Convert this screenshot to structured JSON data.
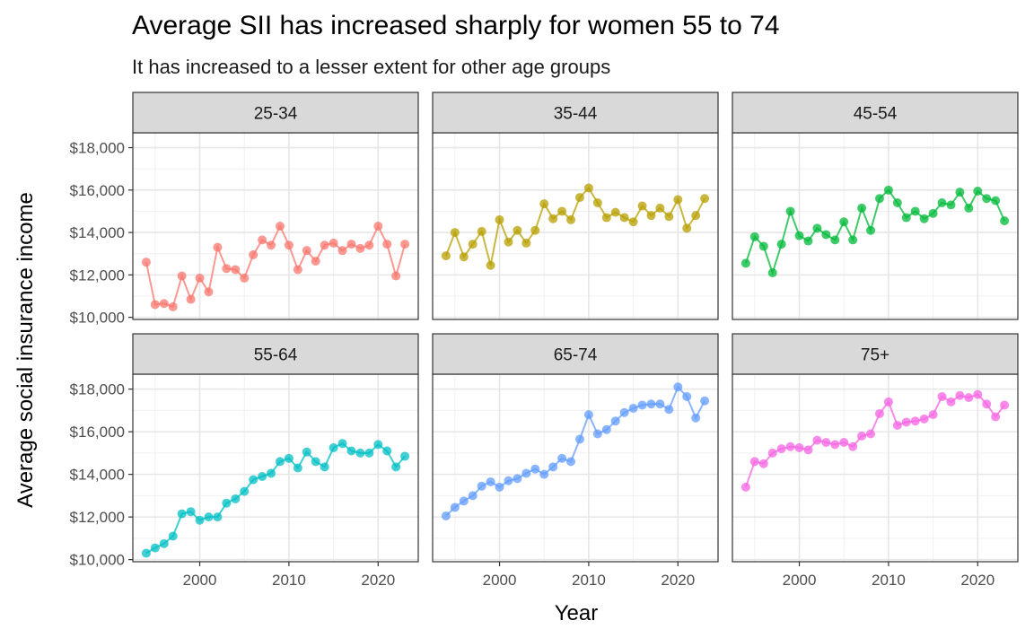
{
  "chart_data": {
    "type": "line",
    "title": "Average SII has increased sharply for women 55 to 74",
    "subtitle": "It has increased to a lesser extent for other age groups",
    "xlabel": "Year",
    "ylabel": "Average social insurance income",
    "xlim": [
      1992.5,
      2024.5
    ],
    "ylim": [
      9900,
      18700
    ],
    "x_ticks": [
      2000,
      2010,
      2020
    ],
    "y_ticks": [
      10000,
      12000,
      14000,
      16000,
      18000
    ],
    "y_tick_labels": [
      "$10,000",
      "$12,000",
      "$14,000",
      "$16,000",
      "$18,000"
    ],
    "x_tick_labels": [
      "2000",
      "2010",
      "2020"
    ],
    "grid": true,
    "legend": "none",
    "layout": "facet grid, 2 rows x 3 columns, shared axes",
    "x": [
      1994,
      1995,
      1996,
      1997,
      1998,
      1999,
      2000,
      2001,
      2002,
      2003,
      2004,
      2005,
      2006,
      2007,
      2008,
      2009,
      2010,
      2011,
      2012,
      2013,
      2014,
      2015,
      2016,
      2017,
      2018,
      2019,
      2020,
      2021,
      2022,
      2023
    ],
    "series": [
      {
        "name": "25-34",
        "color": "#F8766D",
        "values": [
          12600,
          10600,
          10650,
          10500,
          11950,
          10850,
          11850,
          11200,
          13300,
          12300,
          12250,
          11850,
          12950,
          13650,
          13400,
          14300,
          13400,
          12250,
          13150,
          12650,
          13400,
          13500,
          13150,
          13450,
          13250,
          13400,
          14300,
          13450,
          11950,
          13450
        ]
      },
      {
        "name": "35-44",
        "color": "#B79F00",
        "values": [
          12900,
          14000,
          12850,
          13450,
          14050,
          12450,
          14600,
          13550,
          14100,
          13500,
          14100,
          15350,
          14650,
          15000,
          14600,
          15650,
          16100,
          15400,
          14700,
          14950,
          14700,
          14500,
          15250,
          14800,
          15150,
          14750,
          15550,
          14200,
          14800,
          15600
        ]
      },
      {
        "name": "45-54",
        "color": "#00BA38",
        "values": [
          12550,
          13800,
          13350,
          12100,
          13450,
          15000,
          13850,
          13600,
          14200,
          13900,
          13650,
          14500,
          13650,
          15150,
          14100,
          15600,
          16000,
          15400,
          14700,
          15000,
          14650,
          14900,
          15400,
          15300,
          15900,
          15150,
          15950,
          15600,
          15500,
          14550
        ]
      },
      {
        "name": "55-64",
        "color": "#00BFC4",
        "values": [
          10300,
          10550,
          10750,
          11100,
          12150,
          12250,
          11850,
          12000,
          12000,
          12650,
          12850,
          13200,
          13750,
          13900,
          14050,
          14600,
          14750,
          14300,
          15050,
          14600,
          14350,
          15250,
          15450,
          15100,
          15000,
          15000,
          15400,
          15100,
          14350,
          14850
        ]
      },
      {
        "name": "65-74",
        "color": "#619CFF",
        "values": [
          12050,
          12450,
          12750,
          13000,
          13450,
          13650,
          13400,
          13700,
          13800,
          14050,
          14250,
          14000,
          14350,
          14750,
          14600,
          15650,
          16800,
          15900,
          16100,
          16500,
          16900,
          17100,
          17250,
          17300,
          17300,
          17050,
          18100,
          17650,
          16650,
          17450
        ]
      },
      {
        "name": "75+",
        "color": "#F564E3",
        "values": [
          13400,
          14600,
          14500,
          15000,
          15200,
          15300,
          15250,
          15150,
          15600,
          15500,
          15400,
          15500,
          15300,
          15800,
          15900,
          16850,
          17400,
          16300,
          16450,
          16500,
          16600,
          16800,
          17650,
          17400,
          17700,
          17600,
          17750,
          17300,
          16700,
          17250
        ]
      }
    ]
  }
}
